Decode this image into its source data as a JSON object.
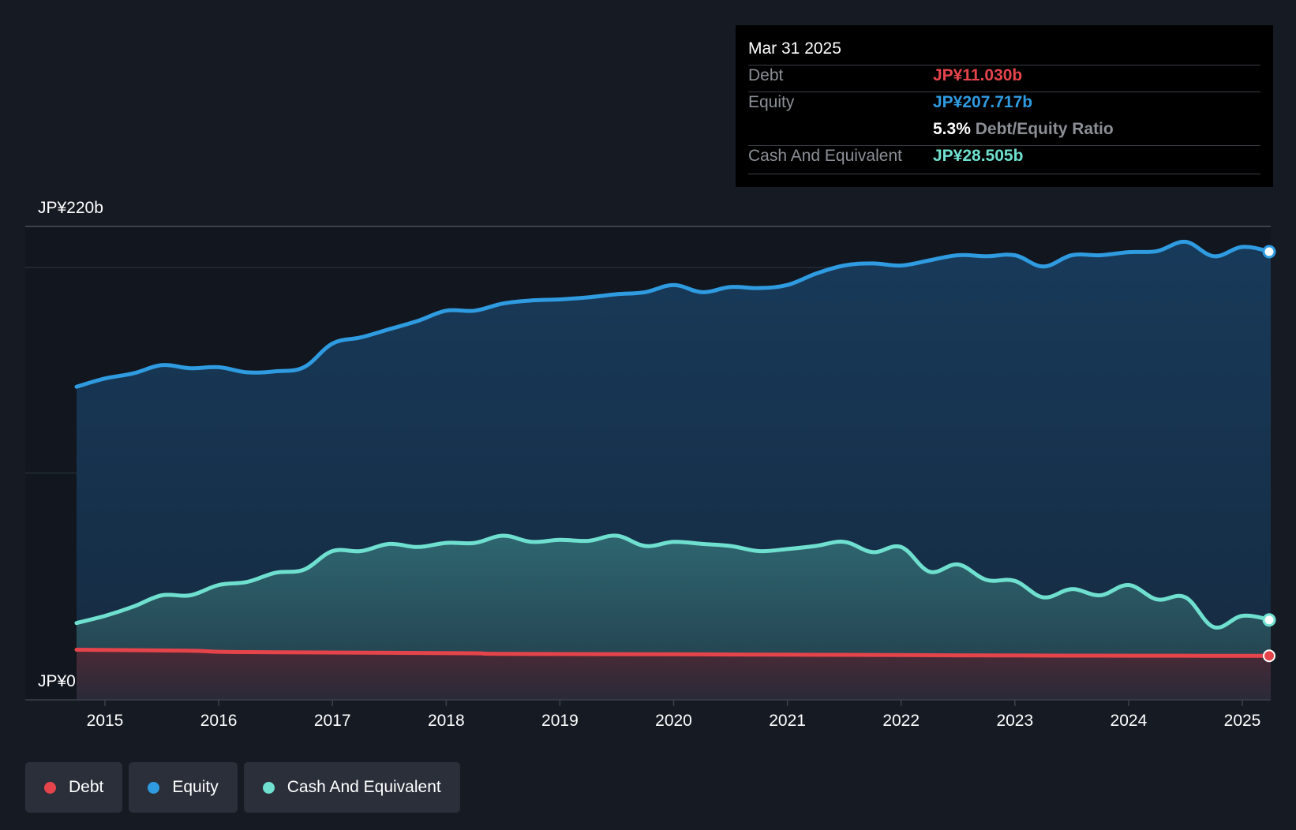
{
  "tooltip": {
    "date": "Mar 31 2025",
    "rows": [
      {
        "label": "Debt",
        "value": "JP¥11.030b",
        "color": "#e5444b"
      },
      {
        "label": "Equity",
        "value": "JP¥207.717b",
        "color": "#2f9be0"
      },
      {
        "label": "Cash And Equivalent",
        "value": "JP¥28.505b",
        "color": "#6fe0cf"
      }
    ],
    "ratio_value": "5.3%",
    "ratio_label": "Debt/Equity Ratio"
  },
  "legend": [
    {
      "label": "Debt",
      "color": "#e5444b"
    },
    {
      "label": "Equity",
      "color": "#2f9be0"
    },
    {
      "label": "Cash And Equivalent",
      "color": "#6fe0cf"
    }
  ],
  "chart_data": {
    "type": "area",
    "ylim": [
      0,
      220
    ],
    "y_unit": "JP¥ billions",
    "y_tick_labels": [
      "JP¥0",
      "JP¥220b"
    ],
    "x_tick_labels": [
      "2015",
      "2016",
      "2017",
      "2018",
      "2019",
      "2020",
      "2021",
      "2022",
      "2023",
      "2024",
      "2025"
    ],
    "grid": true,
    "legend_position": "bottom-left",
    "series": [
      {
        "name": "Equity",
        "color": "#2f9be0",
        "points": [
          [
            2014.75,
            142
          ],
          [
            2015.0,
            146
          ],
          [
            2015.25,
            148.5
          ],
          [
            2015.5,
            152.5
          ],
          [
            2015.75,
            151
          ],
          [
            2016.0,
            151.5
          ],
          [
            2016.25,
            149
          ],
          [
            2016.5,
            149.5
          ],
          [
            2016.75,
            151.5
          ],
          [
            2017.0,
            163
          ],
          [
            2017.25,
            166
          ],
          [
            2017.5,
            170
          ],
          [
            2017.75,
            174
          ],
          [
            2018.0,
            179
          ],
          [
            2018.25,
            179
          ],
          [
            2018.5,
            182.5
          ],
          [
            2018.75,
            184
          ],
          [
            2019.0,
            184.5
          ],
          [
            2019.25,
            185.5
          ],
          [
            2019.5,
            187
          ],
          [
            2019.75,
            188
          ],
          [
            2020.0,
            191.5
          ],
          [
            2020.25,
            188
          ],
          [
            2020.5,
            190.5
          ],
          [
            2020.75,
            190
          ],
          [
            2021.0,
            191.5
          ],
          [
            2021.25,
            197
          ],
          [
            2021.5,
            201
          ],
          [
            2021.75,
            202
          ],
          [
            2022.0,
            201
          ],
          [
            2022.25,
            203.5
          ],
          [
            2022.5,
            206
          ],
          [
            2022.75,
            205.5
          ],
          [
            2023.0,
            206
          ],
          [
            2023.25,
            200.5
          ],
          [
            2023.5,
            206
          ],
          [
            2023.75,
            206
          ],
          [
            2024.0,
            207.5
          ],
          [
            2024.25,
            208
          ],
          [
            2024.5,
            212.5
          ],
          [
            2024.75,
            205.5
          ],
          [
            2025.0,
            210
          ],
          [
            2025.25,
            207.7
          ]
        ]
      },
      {
        "name": "Cash And Equivalent",
        "color": "#6fe0cf",
        "points": [
          [
            2014.75,
            27
          ],
          [
            2015.0,
            30.5
          ],
          [
            2015.25,
            35
          ],
          [
            2015.5,
            40.5
          ],
          [
            2015.75,
            40.5
          ],
          [
            2016.0,
            45.5
          ],
          [
            2016.25,
            47
          ],
          [
            2016.5,
            51.5
          ],
          [
            2016.75,
            53
          ],
          [
            2017.0,
            62
          ],
          [
            2017.25,
            62
          ],
          [
            2017.5,
            65.5
          ],
          [
            2017.75,
            64
          ],
          [
            2018.0,
            66
          ],
          [
            2018.25,
            66
          ],
          [
            2018.5,
            69.5
          ],
          [
            2018.75,
            66.5
          ],
          [
            2019.0,
            67.5
          ],
          [
            2019.25,
            67
          ],
          [
            2019.5,
            69.5
          ],
          [
            2019.75,
            64.5
          ],
          [
            2020.0,
            66.5
          ],
          [
            2020.25,
            65.5
          ],
          [
            2020.5,
            64.5
          ],
          [
            2020.75,
            62
          ],
          [
            2021.0,
            63
          ],
          [
            2021.25,
            64.5
          ],
          [
            2021.5,
            66.5
          ],
          [
            2021.75,
            61.5
          ],
          [
            2022.0,
            64
          ],
          [
            2022.25,
            52
          ],
          [
            2022.5,
            55.5
          ],
          [
            2022.75,
            48
          ],
          [
            2023.0,
            47.5
          ],
          [
            2023.25,
            39.5
          ],
          [
            2023.5,
            43.5
          ],
          [
            2023.75,
            40.5
          ],
          [
            2024.0,
            45.5
          ],
          [
            2024.25,
            38.5
          ],
          [
            2024.5,
            39.5
          ],
          [
            2024.75,
            25
          ],
          [
            2025.0,
            30.5
          ],
          [
            2025.25,
            28.5
          ]
        ]
      },
      {
        "name": "Debt",
        "color": "#e5444b",
        "points": [
          [
            2014.75,
            14
          ],
          [
            2015.75,
            13.5
          ],
          [
            2016.0,
            13
          ],
          [
            2016.5,
            12.8
          ],
          [
            2017.5,
            12.5
          ],
          [
            2018.25,
            12.3
          ],
          [
            2018.5,
            12
          ],
          [
            2020.0,
            11.8
          ],
          [
            2021.0,
            11.6
          ],
          [
            2022.0,
            11.4
          ],
          [
            2023.0,
            11.2
          ],
          [
            2024.0,
            11.1
          ],
          [
            2025.25,
            11.03
          ]
        ]
      }
    ]
  }
}
